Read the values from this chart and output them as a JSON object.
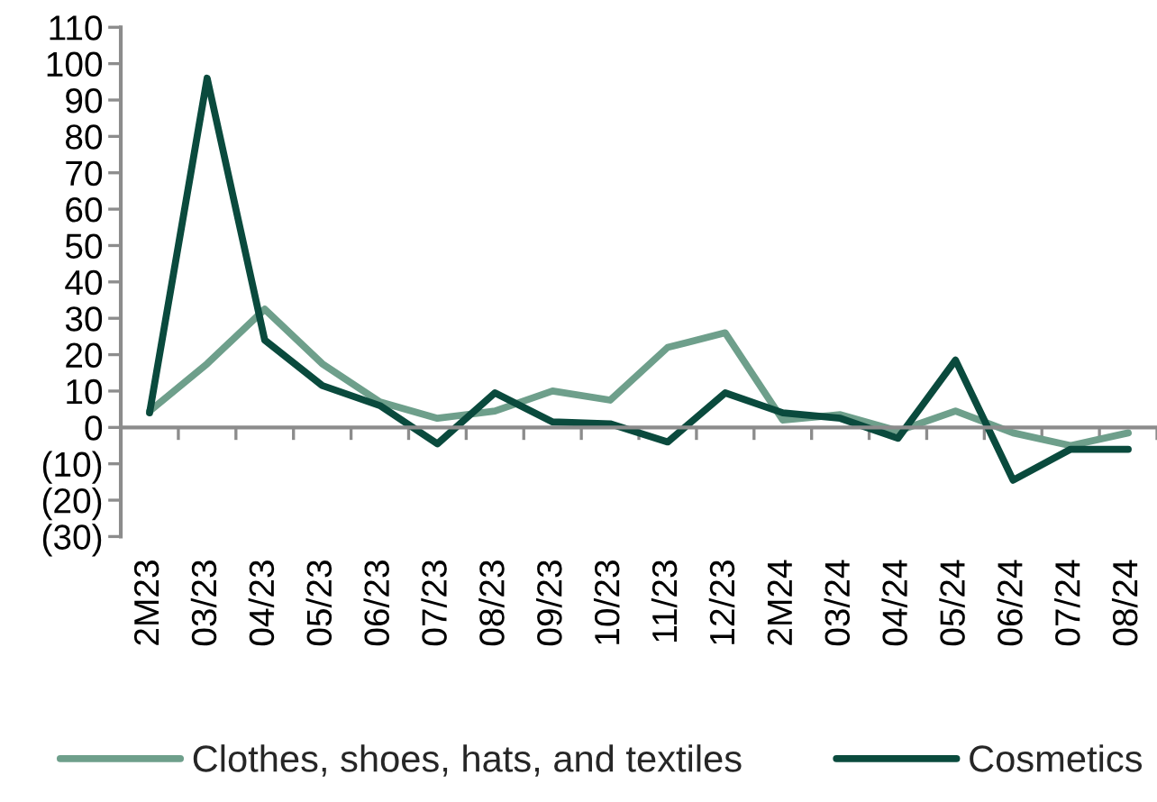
{
  "chart_data": {
    "type": "line",
    "categories": [
      "2M23",
      "03/23",
      "04/23",
      "05/23",
      "06/23",
      "07/23",
      "08/23",
      "09/23",
      "10/23",
      "11/23",
      "12/23",
      "2M24",
      "03/24",
      "04/24",
      "05/24",
      "06/24",
      "07/24",
      "08/24"
    ],
    "series": [
      {
        "name": "Clothes, shoes, hats, and textiles",
        "color": "#6e9f8b",
        "values": [
          4.5,
          17.5,
          32.5,
          17.5,
          7,
          2.5,
          4.5,
          10,
          7.5,
          22,
          26,
          2,
          3.5,
          -1,
          4.5,
          -1.5,
          -5,
          -1.5
        ]
      },
      {
        "name": "Cosmetics",
        "color": "#0a4a3d",
        "values": [
          4,
          96,
          24,
          11.5,
          6,
          -4.5,
          9.5,
          1.5,
          1,
          -4,
          9.5,
          4,
          2.5,
          -3,
          18.5,
          -14.5,
          -6,
          -6
        ]
      }
    ],
    "ylim": [
      -30,
      110
    ],
    "yticks": [
      {
        "value": -30,
        "label": "(30)"
      },
      {
        "value": -20,
        "label": "(20)"
      },
      {
        "value": -10,
        "label": "(10)"
      },
      0,
      10,
      20,
      30,
      40,
      50,
      60,
      70,
      80,
      90,
      100,
      110
    ],
    "legend": "bottom",
    "line_style": "solid"
  }
}
